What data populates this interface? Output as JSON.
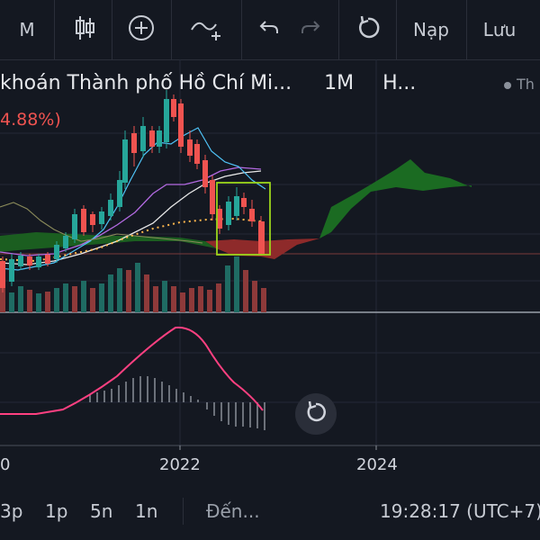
{
  "toolbar": {
    "interval": "M",
    "load_label": "Nạp",
    "save_label": "Lưu"
  },
  "header": {
    "title": "khoán Thành phố Hồ Chí Mi...",
    "interval": "1M",
    "exchange": "H...",
    "change_pct": "4.88%)",
    "th_label": "Th"
  },
  "x_axis": {
    "labels": [
      "0",
      "2022",
      "2024"
    ]
  },
  "bottom_bar": {
    "ranges": [
      "3p",
      "1p",
      "5n",
      "1n"
    ],
    "goto_label": "Đến...",
    "clock": "19:28:17 (UTC+7)"
  },
  "colors": {
    "up": "#26a69a",
    "down": "#ef5350",
    "cloud_bull": "#1b5e20",
    "cloud_bear": "#8e2a2a",
    "macd": "#ff4081",
    "highlight": "#9bd51c"
  },
  "icons": [
    "candlestick-icon",
    "add-indicator-icon",
    "compare-icon",
    "undo-icon",
    "redo-icon",
    "reload-icon",
    "reset-view-icon"
  ]
}
